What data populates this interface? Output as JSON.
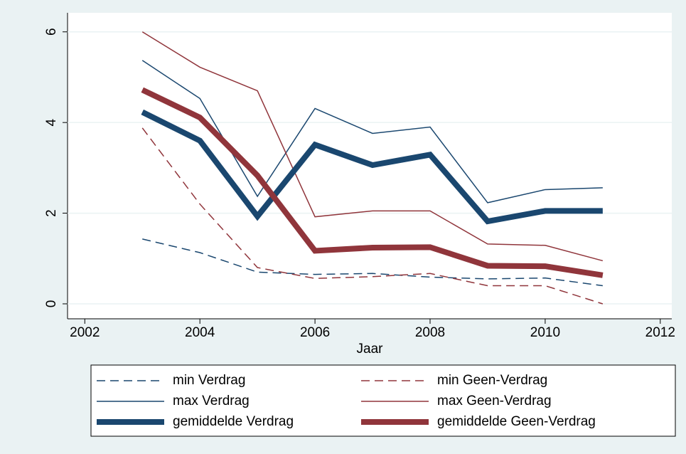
{
  "chart_data": {
    "type": "line",
    "x_label": "Jaar",
    "x": [
      2003,
      2004,
      2005,
      2006,
      2007,
      2008,
      2009,
      2010,
      2011
    ],
    "xlim": [
      2001.7,
      2012.2
    ],
    "xticks": [
      2002,
      2004,
      2006,
      2008,
      2010,
      2012
    ],
    "ylim": [
      -0.33,
      6.42
    ],
    "yticks": [
      0,
      2,
      4,
      6
    ],
    "grid": true,
    "series": [
      {
        "name": "min Verdrag",
        "color": "#1a476f",
        "line_style": "dashed",
        "line_width": 1.5,
        "values": [
          1.43,
          1.13,
          0.7,
          0.65,
          0.67,
          0.59,
          0.55,
          0.57,
          0.4
        ]
      },
      {
        "name": "min Geen-Verdrag",
        "color": "#90353b",
        "line_style": "dashed",
        "line_width": 1.5,
        "values": [
          3.88,
          2.2,
          0.8,
          0.56,
          0.6,
          0.67,
          0.4,
          0.4,
          0.0
        ]
      },
      {
        "name": "max Verdrag",
        "color": "#1a476f",
        "line_style": "solid",
        "line_width": 1.5,
        "values": [
          5.37,
          4.53,
          2.37,
          4.31,
          3.76,
          3.9,
          2.23,
          2.52,
          2.56
        ]
      },
      {
        "name": "max Geen-Verdrag",
        "color": "#90353b",
        "line_style": "solid",
        "line_width": 1.5,
        "values": [
          6.0,
          5.22,
          4.7,
          1.92,
          2.05,
          2.05,
          1.32,
          1.29,
          0.95
        ]
      },
      {
        "name": "gemiddelde Verdrag",
        "color": "#1a476f",
        "line_style": "solid",
        "line_width": 8,
        "values": [
          4.23,
          3.6,
          1.93,
          3.51,
          3.06,
          3.29,
          1.82,
          2.05,
          2.05
        ]
      },
      {
        "name": "gemiddelde Geen-Verdrag",
        "color": "#90353b",
        "line_style": "solid",
        "line_width": 8,
        "values": [
          4.72,
          4.11,
          2.83,
          1.17,
          1.24,
          1.25,
          0.84,
          0.83,
          0.63
        ]
      }
    ]
  }
}
